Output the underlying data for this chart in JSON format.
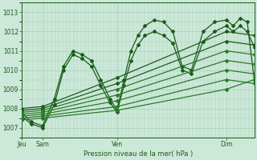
{
  "background_color": "#cce8d8",
  "grid_color": "#aacfba",
  "line_color_dark": "#1a5c1a",
  "line_color_mid": "#2a7a2a",
  "title": "Pression niveau de la mer( hPa )",
  "xlabel_ticks": [
    "Jeu",
    "Sam",
    "Ven",
    "Dim"
  ],
  "xlabel_tick_positions": [
    0.0,
    0.09,
    0.41,
    0.88
  ],
  "ylim": [
    1006.5,
    1013.5
  ],
  "xlim": [
    0.0,
    1.0
  ],
  "yticks": [
    1007,
    1008,
    1009,
    1010,
    1011,
    1012,
    1013
  ],
  "series": [
    {
      "x": [
        0.0,
        0.04,
        0.09,
        0.14,
        0.18,
        0.22,
        0.26,
        0.3,
        0.34,
        0.38,
        0.41,
        0.44,
        0.47,
        0.5,
        0.53,
        0.57,
        0.61,
        0.65,
        0.69,
        0.73,
        0.78,
        0.83,
        0.88,
        0.91,
        0.94,
        0.97,
        1.0
      ],
      "y": [
        1007.8,
        1007.3,
        1007.1,
        1008.5,
        1010.2,
        1011.0,
        1010.8,
        1010.5,
        1009.5,
        1008.5,
        1007.9,
        1009.5,
        1011.0,
        1011.8,
        1012.3,
        1012.6,
        1012.5,
        1012.0,
        1010.2,
        1010.0,
        1012.0,
        1012.5,
        1012.6,
        1012.3,
        1012.7,
        1012.5,
        1009.5
      ]
    },
    {
      "x": [
        0.0,
        0.04,
        0.09,
        0.14,
        0.18,
        0.22,
        0.26,
        0.3,
        0.34,
        0.38,
        0.41,
        0.44,
        0.47,
        0.5,
        0.53,
        0.57,
        0.61,
        0.65,
        0.69,
        0.73,
        0.78,
        0.83,
        0.88,
        0.91,
        0.94,
        0.97,
        1.0
      ],
      "y": [
        1007.6,
        1007.2,
        1007.0,
        1008.2,
        1010.0,
        1010.8,
        1010.6,
        1010.2,
        1009.2,
        1008.3,
        1007.8,
        1009.2,
        1010.5,
        1011.3,
        1011.8,
        1012.0,
        1011.8,
        1011.4,
        1010.0,
        1009.8,
        1011.5,
        1012.0,
        1012.3,
        1012.0,
        1012.3,
        1012.0,
        1011.2
      ]
    },
    {
      "x": [
        0.0,
        0.09,
        0.41,
        0.88,
        1.0
      ],
      "y": [
        1008.0,
        1008.1,
        1009.6,
        1012.0,
        1011.8
      ]
    },
    {
      "x": [
        0.0,
        0.09,
        0.41,
        0.88,
        1.0
      ],
      "y": [
        1007.9,
        1008.0,
        1009.3,
        1011.5,
        1011.3
      ]
    },
    {
      "x": [
        0.0,
        0.09,
        0.41,
        0.88,
        1.0
      ],
      "y": [
        1007.8,
        1007.9,
        1009.0,
        1011.0,
        1010.8
      ]
    },
    {
      "x": [
        0.0,
        0.09,
        0.41,
        0.88,
        1.0
      ],
      "y": [
        1007.7,
        1007.8,
        1008.7,
        1010.5,
        1010.3
      ]
    },
    {
      "x": [
        0.0,
        0.09,
        0.41,
        0.88,
        1.0
      ],
      "y": [
        1007.6,
        1007.7,
        1008.4,
        1010.0,
        1009.8
      ]
    },
    {
      "x": [
        0.0,
        0.09,
        0.41,
        0.88,
        1.0
      ],
      "y": [
        1007.5,
        1007.6,
        1008.1,
        1009.5,
        1009.3
      ]
    },
    {
      "x": [
        0.0,
        0.09,
        0.41,
        0.88,
        1.0
      ],
      "y": [
        1007.4,
        1007.5,
        1007.9,
        1009.0,
        1009.5
      ]
    }
  ],
  "marker": "D",
  "markersize": 2.0,
  "linewidth": 0.9
}
